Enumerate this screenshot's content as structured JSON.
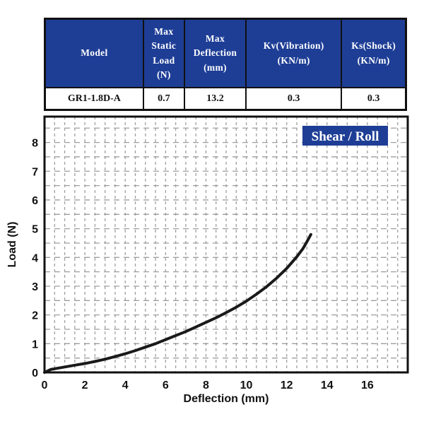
{
  "colors": {
    "table_header_bg": "#1e3e96",
    "badge_bg": "#1e3e96",
    "curve": "#1a1a1a",
    "grid": "#9e9e9e",
    "text_on_blue": "#ffffff"
  },
  "table": {
    "headers": [
      "Model",
      "Max\nStatic\nLoad\n(N)",
      "Max\nDeflection\n(mm)",
      "Kv(Vibration)\n(KN/m)",
      "Ks(Shock)\n(KN/m)"
    ],
    "rows": [
      [
        "GR1-1.8D-A",
        "0.7",
        "13.2",
        "0.3",
        "0.3"
      ]
    ]
  },
  "chart": {
    "badge_label": "Shear / Roll"
  },
  "chart_data": {
    "type": "line",
    "title": "Shear / Roll",
    "xlabel": "Deflection (mm)",
    "ylabel": "Load (N)",
    "xlim": [
      0,
      18
    ],
    "ylim": [
      0,
      8.9
    ],
    "x_ticks": [
      0,
      2,
      4,
      6,
      8,
      10,
      12,
      14,
      16
    ],
    "y_ticks": [
      0,
      1,
      2,
      3,
      4,
      5,
      6,
      7,
      8
    ],
    "grid": {
      "style": "dashed",
      "minor_step": 0.5
    },
    "legend_position": "top-right-badge",
    "series": [
      {
        "name": "load-deflection-curve",
        "x": [
          0,
          0.3,
          0.6,
          1,
          1.5,
          2,
          2.5,
          3,
          3.5,
          4,
          4.5,
          5,
          5.5,
          6,
          6.5,
          7,
          7.5,
          8,
          8.5,
          9,
          9.5,
          10,
          10.5,
          11,
          11.5,
          12,
          12.5,
          12.8,
          13.0,
          13.2
        ],
        "y": [
          0,
          0.1,
          0.14,
          0.19,
          0.25,
          0.31,
          0.38,
          0.46,
          0.55,
          0.65,
          0.76,
          0.88,
          1.0,
          1.14,
          1.28,
          1.42,
          1.58,
          1.74,
          1.9,
          2.08,
          2.27,
          2.48,
          2.72,
          2.98,
          3.28,
          3.62,
          4.02,
          4.3,
          4.54,
          4.8
        ]
      }
    ]
  }
}
